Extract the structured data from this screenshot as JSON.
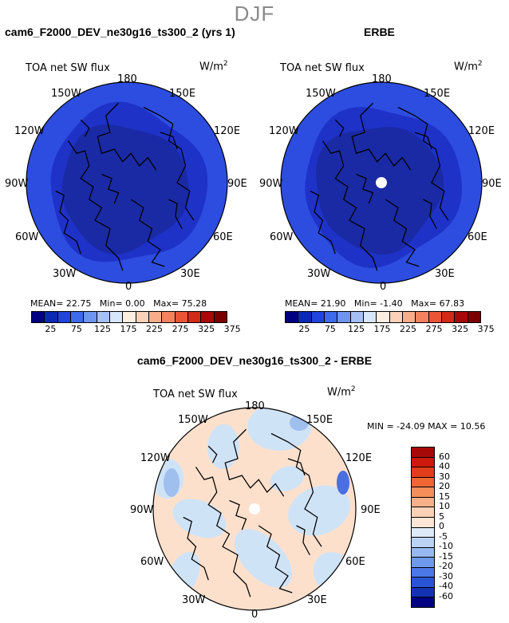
{
  "season": "DJF",
  "panels": [
    {
      "title": "cam6_F2000_DEV_ne30g16_ts300_2 (yrs 1)",
      "variable": "TOA net SW flux",
      "units_base": "W/m",
      "units_exp": "2",
      "stats": {
        "mean_label": "MEAN=",
        "mean": "22.75",
        "min_label": "Min=",
        "min": "0.00",
        "max_label": "Max=",
        "max": "75.28"
      },
      "map_colors": {
        "outer": "#2d4de0",
        "mid": "#1e32c8",
        "inner": "#1a2aa4"
      },
      "has_missing_pole": false
    },
    {
      "title": "ERBE",
      "variable": "TOA net SW flux",
      "units_base": "W/m",
      "units_exp": "2",
      "stats": {
        "mean_label": "MEAN=",
        "mean": "21.90",
        "min_label": "Min=",
        "min": "-1.40",
        "max_label": "Max=",
        "max": "67.83"
      },
      "map_colors": {
        "outer": "#2d4de0",
        "mid": "#1e32c8",
        "inner": "#1a2aa4"
      },
      "has_missing_pole": true
    }
  ],
  "diff": {
    "title": "cam6_F2000_DEV_ne30g16_ts300_2 - ERBE",
    "variable": "TOA net SW flux",
    "units_base": "W/m",
    "units_exp": "2",
    "minmax": "MIN = -24.09  MAX =  10.56",
    "has_missing_pole": true,
    "map_colors": {
      "base": "#fde0cc",
      "blue": "#cfe3f7",
      "blue2": "#9fbfef",
      "blue3": "#4a6fe0"
    }
  },
  "lon_labels": {
    "top": "180",
    "top_left": "150W",
    "top_right": "150E",
    "upper_left": "120W",
    "upper_right": "120E",
    "left": "90W",
    "right": "90E",
    "lower_left": "60W",
    "lower_right": "60E",
    "bottom_left": "30W",
    "bottom_right": "30E",
    "bottom": "0"
  },
  "top_colorbar": {
    "colors": [
      "#000080",
      "#0a2ab4",
      "#2145dc",
      "#3e6aec",
      "#6e95f2",
      "#a4c0f6",
      "#d8e6fa",
      "#fdeee2",
      "#fbd2b8",
      "#f8ad8a",
      "#f4825e",
      "#ea5536",
      "#d12a16",
      "#a70808",
      "#7a0000"
    ],
    "ticks": [
      "25",
      "75",
      "125",
      "175",
      "225",
      "275",
      "325",
      "375"
    ]
  },
  "diff_colorbar": {
    "colors": [
      "#a70808",
      "#cd1a0c",
      "#e23d1a",
      "#ef6632",
      "#f58e58",
      "#f8b08a",
      "#fbd2b8",
      "#fde6d6",
      "#dfeaf8",
      "#bcd2f4",
      "#97b8f0",
      "#6f99ec",
      "#4a78e6",
      "#2a54d6",
      "#1432b4",
      "#000080"
    ],
    "ticks": [
      "60",
      "40",
      "30",
      "20",
      "15",
      "10",
      "5",
      "0",
      "-5",
      "-10",
      "-15",
      "-20",
      "-30",
      "-40",
      "-60"
    ]
  }
}
